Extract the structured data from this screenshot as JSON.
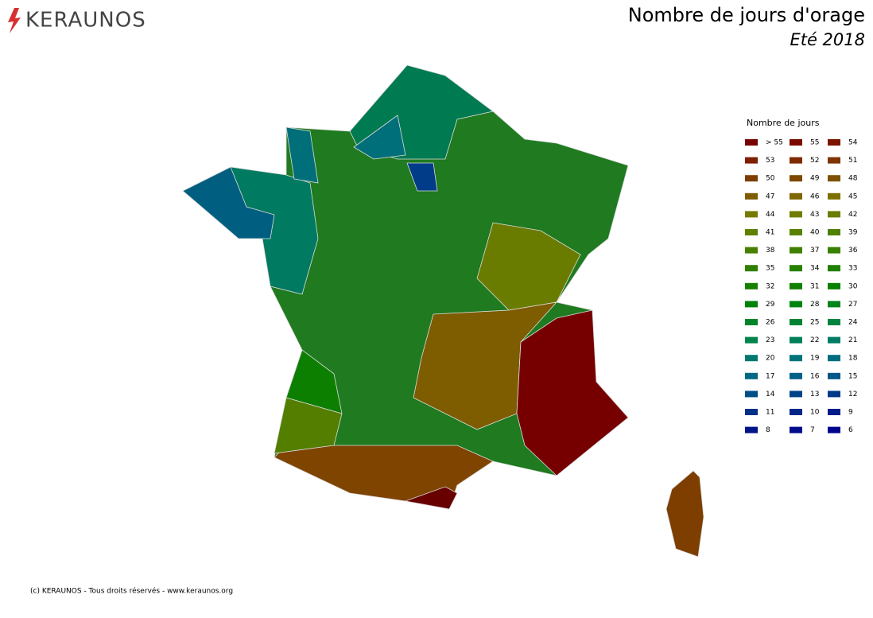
{
  "header": {
    "logo": "KERAUNOS",
    "title": "Nombre de jours d'orage",
    "subtitle": "Eté 2018"
  },
  "legend": {
    "title": "Nombre de jours",
    "items": [
      {
        "label": "> 55",
        "color": "#780000"
      },
      {
        "label": 55,
        "color": "#7a0a00"
      },
      {
        "label": 54,
        "color": "#7c1400"
      },
      {
        "label": 53,
        "color": "#7e2000"
      },
      {
        "label": 52,
        "color": "#7e2a00"
      },
      {
        "label": 51,
        "color": "#7e3400"
      },
      {
        "label": 50,
        "color": "#7e3e00"
      },
      {
        "label": 49,
        "color": "#7e4800"
      },
      {
        "label": 48,
        "color": "#7e5200"
      },
      {
        "label": 47,
        "color": "#7e5c00"
      },
      {
        "label": 46,
        "color": "#7e6600"
      },
      {
        "label": 45,
        "color": "#7e7000"
      },
      {
        "label": 44,
        "color": "#787a00"
      },
      {
        "label": 43,
        "color": "#707c00"
      },
      {
        "label": 42,
        "color": "#687e00"
      },
      {
        "label": 41,
        "color": "#608000"
      },
      {
        "label": 40,
        "color": "#588000"
      },
      {
        "label": 39,
        "color": "#508000"
      },
      {
        "label": 38,
        "color": "#488000"
      },
      {
        "label": 37,
        "color": "#408000"
      },
      {
        "label": 36,
        "color": "#388000"
      },
      {
        "label": 35,
        "color": "#308000"
      },
      {
        "label": 34,
        "color": "#288000"
      },
      {
        "label": 33,
        "color": "#208000"
      },
      {
        "label": 32,
        "color": "#188000"
      },
      {
        "label": 31,
        "color": "#108000"
      },
      {
        "label": 30,
        "color": "#088000"
      },
      {
        "label": 29,
        "color": "#008208"
      },
      {
        "label": 28,
        "color": "#008410"
      },
      {
        "label": 27,
        "color": "#00841c"
      },
      {
        "label": 26,
        "color": "#008428"
      },
      {
        "label": 25,
        "color": "#008434"
      },
      {
        "label": 24,
        "color": "#008440"
      },
      {
        "label": 23,
        "color": "#00844c"
      },
      {
        "label": 22,
        "color": "#008058"
      },
      {
        "label": 21,
        "color": "#007c64"
      },
      {
        "label": 20,
        "color": "#007870"
      },
      {
        "label": 19,
        "color": "#00747a"
      },
      {
        "label": 18,
        "color": "#006e80"
      },
      {
        "label": 17,
        "color": "#006884"
      },
      {
        "label": 16,
        "color": "#006086"
      },
      {
        "label": 15,
        "color": "#005888"
      },
      {
        "label": 14,
        "color": "#004e88"
      },
      {
        "label": 13,
        "color": "#004488"
      },
      {
        "label": 12,
        "color": "#003a88"
      },
      {
        "label": 11,
        "color": "#003088"
      },
      {
        "label": 10,
        "color": "#00268a"
      },
      {
        "label": 9,
        "color": "#001c8a"
      },
      {
        "label": 8,
        "color": "#00148a"
      },
      {
        "label": 7,
        "color": "#000c8a"
      },
      {
        "label": 6,
        "color": "#00048a"
      }
    ]
  },
  "footer": {
    "copyright": "(c) KERAUNOS - Tous droits réservés - www.keraunos.org"
  }
}
